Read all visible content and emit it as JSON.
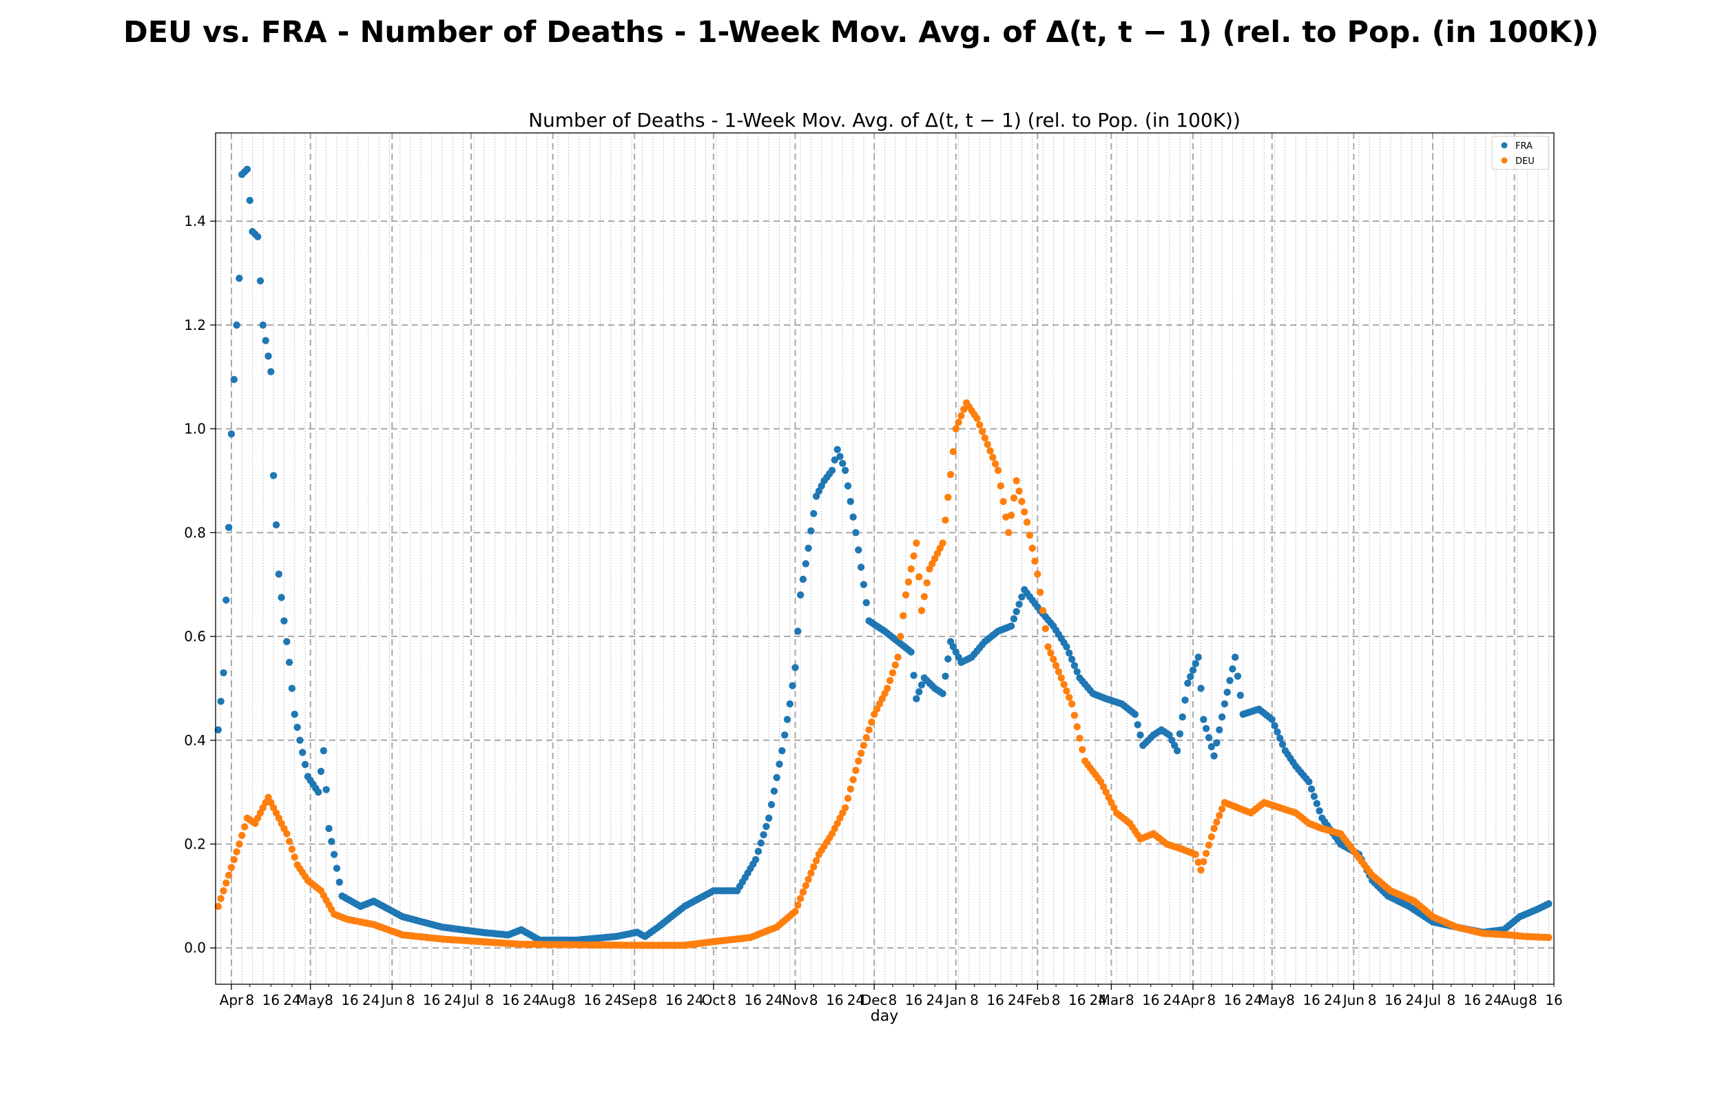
{
  "suptitle": "DEU vs. FRA - Number of Deaths - 1-Week Mov. Avg. of Δ(t, t − 1) (rel. to Pop. (in 100K))",
  "chart_data": {
    "type": "scatter",
    "title": "Number of Deaths - 1-Week Mov. Avg. of Δ(t, t − 1) (rel. to Pop. (in 100K))",
    "xlabel": "day",
    "ylabel": "",
    "x_start": "2020-03-27",
    "x_end": "2021-08-14",
    "xlim": [
      "2020-03-26",
      "2021-08-16"
    ],
    "ylim": [
      -0.07,
      1.57
    ],
    "yticks": [
      0.0,
      0.2,
      0.4,
      0.6,
      0.8,
      1.0,
      1.2,
      1.4
    ],
    "ytick_labels": [
      "0.0",
      "0.2",
      "0.4",
      "0.6",
      "0.8",
      "1.0",
      "1.2",
      "1.4"
    ],
    "xticks_major": [
      {
        "date": "2020-04-01",
        "label": "Apr"
      },
      {
        "date": "2020-05-01",
        "label": "May"
      },
      {
        "date": "2020-06-01",
        "label": "Jun"
      },
      {
        "date": "2020-07-01",
        "label": "Jul"
      },
      {
        "date": "2020-08-01",
        "label": "Aug"
      },
      {
        "date": "2020-09-01",
        "label": "Sep"
      },
      {
        "date": "2020-10-01",
        "label": "Oct"
      },
      {
        "date": "2020-11-01",
        "label": "Nov"
      },
      {
        "date": "2020-12-01",
        "label": "Dec"
      },
      {
        "date": "2021-01-01",
        "label": "Jan"
      },
      {
        "date": "2021-02-01",
        "label": "Feb"
      },
      {
        "date": "2021-03-01",
        "label": "Mar"
      },
      {
        "date": "2021-04-01",
        "label": "Apr"
      },
      {
        "date": "2021-05-01",
        "label": "May"
      },
      {
        "date": "2021-06-01",
        "label": "Jun"
      },
      {
        "date": "2021-07-01",
        "label": "Jul"
      },
      {
        "date": "2021-08-01",
        "label": "Aug"
      }
    ],
    "xticks_minor_days": [
      "8",
      "16",
      "24"
    ],
    "grid": true,
    "legend_position": "top-right",
    "series": [
      {
        "name": "FRA",
        "color": "#1f77b4",
        "anchors": [
          [
            "2020-03-27",
            0.42
          ],
          [
            "2020-03-29",
            0.53
          ],
          [
            "2020-03-31",
            0.81
          ],
          [
            "2020-04-01",
            0.99
          ],
          [
            "2020-04-03",
            1.2
          ],
          [
            "2020-04-04",
            1.29
          ],
          [
            "2020-04-05",
            1.49
          ],
          [
            "2020-04-07",
            1.5
          ],
          [
            "2020-04-09",
            1.38
          ],
          [
            "2020-04-11",
            1.37
          ],
          [
            "2020-04-13",
            1.2
          ],
          [
            "2020-04-16",
            1.11
          ],
          [
            "2020-04-17",
            0.91
          ],
          [
            "2020-04-19",
            0.72
          ],
          [
            "2020-04-21",
            0.63
          ],
          [
            "2020-04-23",
            0.55
          ],
          [
            "2020-04-25",
            0.45
          ],
          [
            "2020-04-27",
            0.4
          ],
          [
            "2020-04-30",
            0.33
          ],
          [
            "2020-05-04",
            0.3
          ],
          [
            "2020-05-06",
            0.38
          ],
          [
            "2020-05-08",
            0.23
          ],
          [
            "2020-05-10",
            0.18
          ],
          [
            "2020-05-13",
            0.1
          ],
          [
            "2020-05-20",
            0.08
          ],
          [
            "2020-05-25",
            0.09
          ],
          [
            "2020-06-05",
            0.06
          ],
          [
            "2020-06-20",
            0.04
          ],
          [
            "2020-07-05",
            0.03
          ],
          [
            "2020-07-15",
            0.025
          ],
          [
            "2020-07-20",
            0.035
          ],
          [
            "2020-07-27",
            0.015
          ],
          [
            "2020-08-10",
            0.015
          ],
          [
            "2020-08-25",
            0.022
          ],
          [
            "2020-09-02",
            0.03
          ],
          [
            "2020-09-05",
            0.022
          ],
          [
            "2020-09-10",
            0.04
          ],
          [
            "2020-09-20",
            0.08
          ],
          [
            "2020-10-01",
            0.11
          ],
          [
            "2020-10-10",
            0.11
          ],
          [
            "2020-10-17",
            0.17
          ],
          [
            "2020-10-22",
            0.25
          ],
          [
            "2020-10-27",
            0.38
          ],
          [
            "2020-10-30",
            0.47
          ],
          [
            "2020-11-01",
            0.54
          ],
          [
            "2020-11-03",
            0.68
          ],
          [
            "2020-11-06",
            0.77
          ],
          [
            "2020-11-09",
            0.87
          ],
          [
            "2020-11-12",
            0.9
          ],
          [
            "2020-11-15",
            0.92
          ],
          [
            "2020-11-17",
            0.96
          ],
          [
            "2020-11-20",
            0.92
          ],
          [
            "2020-11-24",
            0.8
          ],
          [
            "2020-11-27",
            0.7
          ],
          [
            "2020-11-29",
            0.63
          ],
          [
            "2020-12-05",
            0.61
          ],
          [
            "2020-12-10",
            0.59
          ],
          [
            "2020-12-15",
            0.57
          ],
          [
            "2020-12-17",
            0.48
          ],
          [
            "2020-12-20",
            0.52
          ],
          [
            "2020-12-24",
            0.5
          ],
          [
            "2020-12-27",
            0.49
          ],
          [
            "2020-12-30",
            0.59
          ],
          [
            "2021-01-03",
            0.55
          ],
          [
            "2021-01-07",
            0.56
          ],
          [
            "2021-01-12",
            0.59
          ],
          [
            "2021-01-17",
            0.61
          ],
          [
            "2021-01-22",
            0.62
          ],
          [
            "2021-01-27",
            0.69
          ],
          [
            "2021-02-02",
            0.65
          ],
          [
            "2021-02-07",
            0.62
          ],
          [
            "2021-02-12",
            0.58
          ],
          [
            "2021-02-17",
            0.52
          ],
          [
            "2021-02-22",
            0.49
          ],
          [
            "2021-02-27",
            0.48
          ],
          [
            "2021-03-05",
            0.47
          ],
          [
            "2021-03-10",
            0.45
          ],
          [
            "2021-03-13",
            0.39
          ],
          [
            "2021-03-17",
            0.41
          ],
          [
            "2021-03-20",
            0.42
          ],
          [
            "2021-03-23",
            0.41
          ],
          [
            "2021-03-26",
            0.38
          ],
          [
            "2021-03-30",
            0.51
          ],
          [
            "2021-04-03",
            0.56
          ],
          [
            "2021-04-05",
            0.44
          ],
          [
            "2021-04-09",
            0.37
          ],
          [
            "2021-04-13",
            0.47
          ],
          [
            "2021-04-17",
            0.56
          ],
          [
            "2021-04-20",
            0.45
          ],
          [
            "2021-04-26",
            0.46
          ],
          [
            "2021-05-01",
            0.44
          ],
          [
            "2021-05-06",
            0.38
          ],
          [
            "2021-05-10",
            0.35
          ],
          [
            "2021-05-15",
            0.32
          ],
          [
            "2021-05-20",
            0.25
          ],
          [
            "2021-05-27",
            0.2
          ],
          [
            "2021-06-03",
            0.18
          ],
          [
            "2021-06-08",
            0.13
          ],
          [
            "2021-06-14",
            0.1
          ],
          [
            "2021-06-22",
            0.08
          ],
          [
            "2021-07-01",
            0.05
          ],
          [
            "2021-07-10",
            0.04
          ],
          [
            "2021-07-20",
            0.03
          ],
          [
            "2021-07-28",
            0.035
          ],
          [
            "2021-08-03",
            0.06
          ],
          [
            "2021-08-10",
            0.075
          ],
          [
            "2021-08-14",
            0.085
          ]
        ]
      },
      {
        "name": "DEU",
        "color": "#ff7f0e",
        "anchors": [
          [
            "2020-03-27",
            0.08
          ],
          [
            "2020-03-31",
            0.14
          ],
          [
            "2020-04-04",
            0.2
          ],
          [
            "2020-04-07",
            0.25
          ],
          [
            "2020-04-10",
            0.24
          ],
          [
            "2020-04-13",
            0.27
          ],
          [
            "2020-04-15",
            0.29
          ],
          [
            "2020-04-18",
            0.26
          ],
          [
            "2020-04-22",
            0.22
          ],
          [
            "2020-04-26",
            0.16
          ],
          [
            "2020-04-30",
            0.13
          ],
          [
            "2020-05-05",
            0.11
          ],
          [
            "2020-05-10",
            0.065
          ],
          [
            "2020-05-15",
            0.055
          ],
          [
            "2020-05-25",
            0.045
          ],
          [
            "2020-06-05",
            0.025
          ],
          [
            "2020-06-20",
            0.017
          ],
          [
            "2020-07-05",
            0.012
          ],
          [
            "2020-07-20",
            0.007
          ],
          [
            "2020-08-10",
            0.006
          ],
          [
            "2020-09-01",
            0.005
          ],
          [
            "2020-09-20",
            0.005
          ],
          [
            "2020-10-01",
            0.012
          ],
          [
            "2020-10-15",
            0.02
          ],
          [
            "2020-10-25",
            0.04
          ],
          [
            "2020-11-01",
            0.07
          ],
          [
            "2020-11-05",
            0.12
          ],
          [
            "2020-11-10",
            0.18
          ],
          [
            "2020-11-15",
            0.22
          ],
          [
            "2020-11-20",
            0.27
          ],
          [
            "2020-11-25",
            0.36
          ],
          [
            "2020-12-01",
            0.45
          ],
          [
            "2020-12-06",
            0.5
          ],
          [
            "2020-12-10",
            0.56
          ],
          [
            "2020-12-13",
            0.68
          ],
          [
            "2020-12-17",
            0.78
          ],
          [
            "2020-12-19",
            0.65
          ],
          [
            "2020-12-22",
            0.73
          ],
          [
            "2020-12-27",
            0.78
          ],
          [
            "2021-01-01",
            1.0
          ],
          [
            "2021-01-05",
            1.05
          ],
          [
            "2021-01-09",
            1.02
          ],
          [
            "2021-01-13",
            0.97
          ],
          [
            "2021-01-17",
            0.92
          ],
          [
            "2021-01-21",
            0.8
          ],
          [
            "2021-01-24",
            0.9
          ],
          [
            "2021-01-28",
            0.82
          ],
          [
            "2021-02-01",
            0.72
          ],
          [
            "2021-02-05",
            0.58
          ],
          [
            "2021-02-10",
            0.52
          ],
          [
            "2021-02-14",
            0.47
          ],
          [
            "2021-02-19",
            0.36
          ],
          [
            "2021-02-25",
            0.32
          ],
          [
            "2021-03-03",
            0.26
          ],
          [
            "2021-03-08",
            0.24
          ],
          [
            "2021-03-12",
            0.21
          ],
          [
            "2021-03-17",
            0.22
          ],
          [
            "2021-03-22",
            0.2
          ],
          [
            "2021-03-28",
            0.19
          ],
          [
            "2021-04-02",
            0.18
          ],
          [
            "2021-04-04",
            0.15
          ],
          [
            "2021-04-09",
            0.23
          ],
          [
            "2021-04-13",
            0.28
          ],
          [
            "2021-04-18",
            0.27
          ],
          [
            "2021-04-23",
            0.26
          ],
          [
            "2021-04-28",
            0.28
          ],
          [
            "2021-05-04",
            0.27
          ],
          [
            "2021-05-10",
            0.26
          ],
          [
            "2021-05-15",
            0.24
          ],
          [
            "2021-05-20",
            0.23
          ],
          [
            "2021-05-27",
            0.22
          ],
          [
            "2021-06-02",
            0.18
          ],
          [
            "2021-06-08",
            0.14
          ],
          [
            "2021-06-15",
            0.11
          ],
          [
            "2021-06-24",
            0.09
          ],
          [
            "2021-07-01",
            0.06
          ],
          [
            "2021-07-10",
            0.04
          ],
          [
            "2021-07-20",
            0.028
          ],
          [
            "2021-07-30",
            0.025
          ],
          [
            "2021-08-05",
            0.022
          ],
          [
            "2021-08-14",
            0.02
          ]
        ]
      }
    ]
  }
}
